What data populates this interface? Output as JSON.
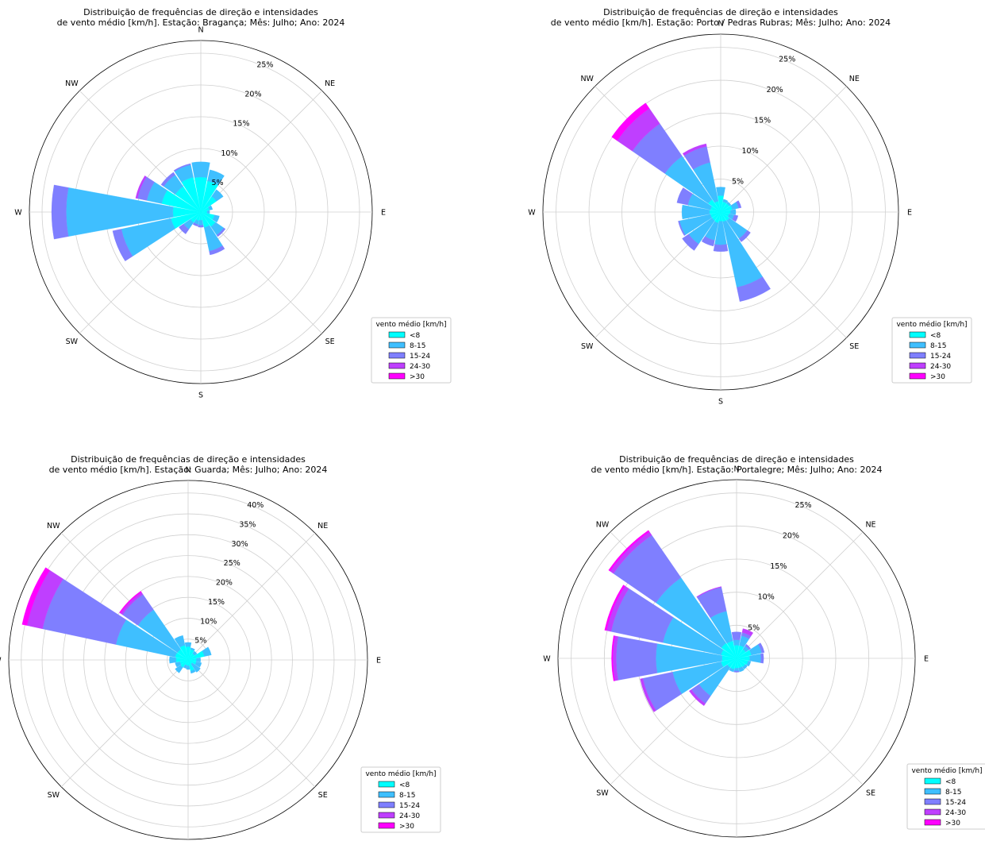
{
  "legend_title": "vento médio [km/h]",
  "direction_labels": [
    "N",
    "NE",
    "E",
    "SE",
    "S",
    "SW",
    "W",
    "NW"
  ],
  "bins": [
    {
      "label": "<8",
      "color": "#00ffff"
    },
    {
      "label": "8-15",
      "color": "#3fbfff"
    },
    {
      "label": "15-24",
      "color": "#7f7fff"
    },
    {
      "label": "24-30",
      "color": "#bf3fff"
    },
    {
      "label": ">30",
      "color": "#ff00ff"
    }
  ],
  "chart_data": [
    {
      "type": "windrose",
      "title": "Distribuição de frequências de direção e intensidades\nde vento médio [km/h]. Estação: Bragança; Mês: Julho; Ano: 2024",
      "rmax": 27,
      "ticks": [
        5,
        10,
        15,
        20,
        25
      ],
      "sectors": 16,
      "series": [
        [
          5.5,
          2.4,
          0,
          0,
          0
        ],
        [
          5.0,
          1.8,
          0,
          0,
          0
        ],
        [
          3.0,
          1.3,
          0,
          0,
          0
        ],
        [
          1.4,
          0.5,
          0,
          0,
          0
        ],
        [
          1.0,
          0.4,
          0,
          0,
          0
        ],
        [
          2.2,
          0.8,
          0,
          0,
          0
        ],
        [
          2.8,
          1.6,
          0.3,
          0,
          0
        ],
        [
          2.5,
          3.8,
          0.6,
          0,
          0
        ],
        [
          1.3,
          0.8,
          0.3,
          0,
          0
        ],
        [
          1.4,
          0.6,
          0.3,
          0,
          0
        ],
        [
          2.0,
          1.3,
          0.9,
          0,
          0
        ],
        [
          4.8,
          8.0,
          1.4,
          0,
          0
        ],
        [
          4.4,
          16.8,
          2.3,
          0,
          0
        ],
        [
          6.3,
          2.4,
          1.5,
          0.3,
          0
        ],
        [
          4.9,
          2.2,
          0.5,
          0,
          0
        ],
        [
          5.6,
          2.0,
          0.2,
          0,
          0
        ]
      ]
    },
    {
      "type": "windrose",
      "title": "Distribuição de frequências de direção e intensidades\nde vento médio [km/h]. Estação: Porto / Pedras Rubras; Mês: Julho; Ano: 2024",
      "rmax": 27,
      "ticks": [
        5,
        10,
        15,
        20,
        25
      ],
      "sectors": 16,
      "series": [
        [
          2.5,
          1.3,
          0,
          0,
          0
        ],
        [
          1.6,
          0.4,
          0,
          0,
          0
        ],
        [
          1.6,
          0.3,
          0,
          0,
          0
        ],
        [
          1.8,
          1.0,
          0.4,
          0,
          0
        ],
        [
          1.5,
          0.8,
          0,
          0,
          0
        ],
        [
          1.3,
          0.8,
          0.6,
          0,
          0
        ],
        [
          1.6,
          3.3,
          0.6,
          0,
          0
        ],
        [
          1.5,
          10.2,
          2.2,
          0,
          0
        ],
        [
          1.4,
          3.6,
          1.0,
          0,
          0
        ],
        [
          1.7,
          2.7,
          0.9,
          0,
          0
        ],
        [
          1.6,
          4.3,
          1.2,
          0,
          0
        ],
        [
          1.6,
          4.8,
          0.2,
          0,
          0
        ],
        [
          1.7,
          4.2,
          0,
          0,
          0
        ],
        [
          1.6,
          3.5,
          1.7,
          0,
          0
        ],
        [
          2.3,
          8.0,
          6.0,
          2.8,
          1.0
        ],
        [
          1.7,
          6.0,
          2.5,
          0.4,
          0
        ]
      ]
    },
    {
      "type": "windrose",
      "title": "Distribuição de frequências de direção e intensidades\nde vento médio [km/h]. Estação: Guarda; Mês: Julho; Ano: 2024",
      "rmax": 43,
      "ticks": [
        5,
        10,
        15,
        20,
        25,
        30,
        35,
        40
      ],
      "sectors": 16,
      "series": [
        [
          3.2,
          1.0,
          0,
          0,
          0
        ],
        [
          2.6,
          0.4,
          0,
          0,
          0
        ],
        [
          1.9,
          0.7,
          0,
          0,
          0
        ],
        [
          4.0,
          1.7,
          0,
          0,
          0
        ],
        [
          2.0,
          1.0,
          0,
          0,
          0
        ],
        [
          2.0,
          1.3,
          0,
          0,
          0
        ],
        [
          1.2,
          2.4,
          0,
          0,
          0
        ],
        [
          2.7,
          0.6,
          0,
          0,
          0
        ],
        [
          1.4,
          0.9,
          0,
          0,
          0
        ],
        [
          1.3,
          0.8,
          0,
          0,
          0
        ],
        [
          2.2,
          1.6,
          0,
          0,
          0
        ],
        [
          2.0,
          1.2,
          0,
          0,
          0
        ],
        [
          2.9,
          1.6,
          0,
          0,
          0
        ],
        [
          3.2,
          14.5,
          18.0,
          3.8,
          1.2
        ],
        [
          3.1,
          11.5,
          4.5,
          0.6,
          0.3
        ],
        [
          3.6,
          2.4,
          0,
          0,
          0
        ]
      ]
    },
    {
      "type": "windrose",
      "title": "Distribuição de frequências de direção e intensidades\nde vento médio [km/h]. Estação: Portalegre; Mês: Julho; Ano: 2024",
      "rmax": 27,
      "ticks": [
        5,
        10,
        15,
        20,
        25
      ],
      "sectors": 16,
      "series": [
        [
          2.0,
          0.8,
          1.2,
          0,
          0
        ],
        [
          2.0,
          1.5,
          0.5,
          0.6,
          0
        ],
        [
          1.7,
          0.6,
          0.3,
          0,
          0
        ],
        [
          2.3,
          1.6,
          0.4,
          0,
          0
        ],
        [
          2.0,
          1.7,
          0.4,
          0,
          0
        ],
        [
          1.8,
          0.4,
          0,
          0,
          0
        ],
        [
          1.6,
          0.4,
          0,
          0,
          0
        ],
        [
          1.5,
          0.6,
          0,
          0,
          0
        ],
        [
          1.5,
          0.4,
          0.2,
          0,
          0
        ],
        [
          1.7,
          0.4,
          0,
          0,
          0
        ],
        [
          1.7,
          5.2,
          1.4,
          0.4,
          0
        ],
        [
          2.4,
          7.5,
          4.6,
          0.4,
          0
        ],
        [
          2.2,
          10.0,
          6.0,
          0.5,
          0.2
        ],
        [
          2.4,
          9.0,
          8.0,
          0.7,
          0.3
        ],
        [
          2.8,
          12.0,
          7.8,
          0.6,
          0.3
        ],
        [
          2.7,
          4.6,
          3.7,
          0.1,
          0
        ]
      ]
    }
  ]
}
